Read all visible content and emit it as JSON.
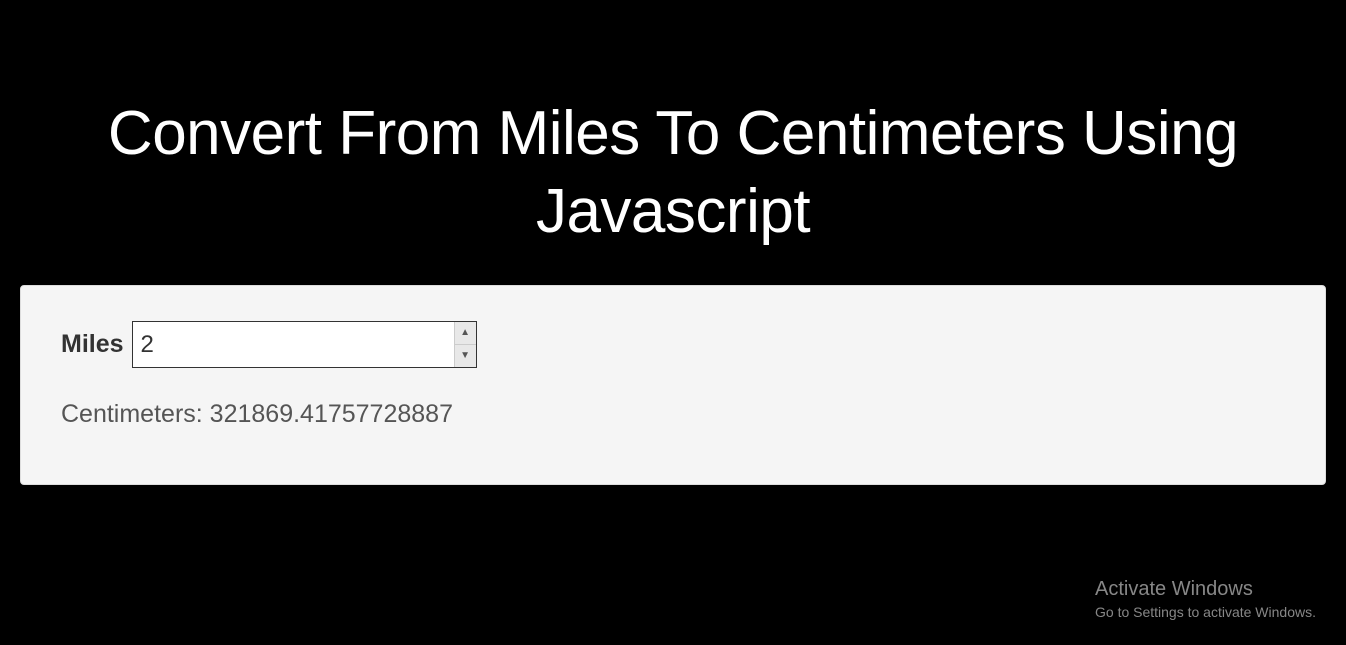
{
  "colors": {
    "page_bg": "#000000",
    "panel_bg": "#f5f5f5",
    "panel_border": "#dddddd",
    "title_color": "#ffffff",
    "label_color": "#333333",
    "result_color": "#555555",
    "input_border": "#333333",
    "input_bg": "#ffffff",
    "spinner_bg": "#e8e8e8",
    "spinner_border": "#cccccc",
    "watermark_color": "#878787"
  },
  "typography": {
    "title_fontsize": 62,
    "label_fontsize": 25,
    "result_fontsize": 25,
    "input_fontsize": 24,
    "watermark_title_fontsize": 20,
    "watermark_sub_fontsize": 14
  },
  "title": "Convert From Miles To Centimeters Using Javascript",
  "converter": {
    "input_label": "Miles",
    "input_value": "2",
    "output_label": "Centimeters:",
    "output_value": "321869.41757728887"
  },
  "watermark": {
    "title": "Activate Windows",
    "subtitle": "Go to Settings to activate Windows."
  }
}
